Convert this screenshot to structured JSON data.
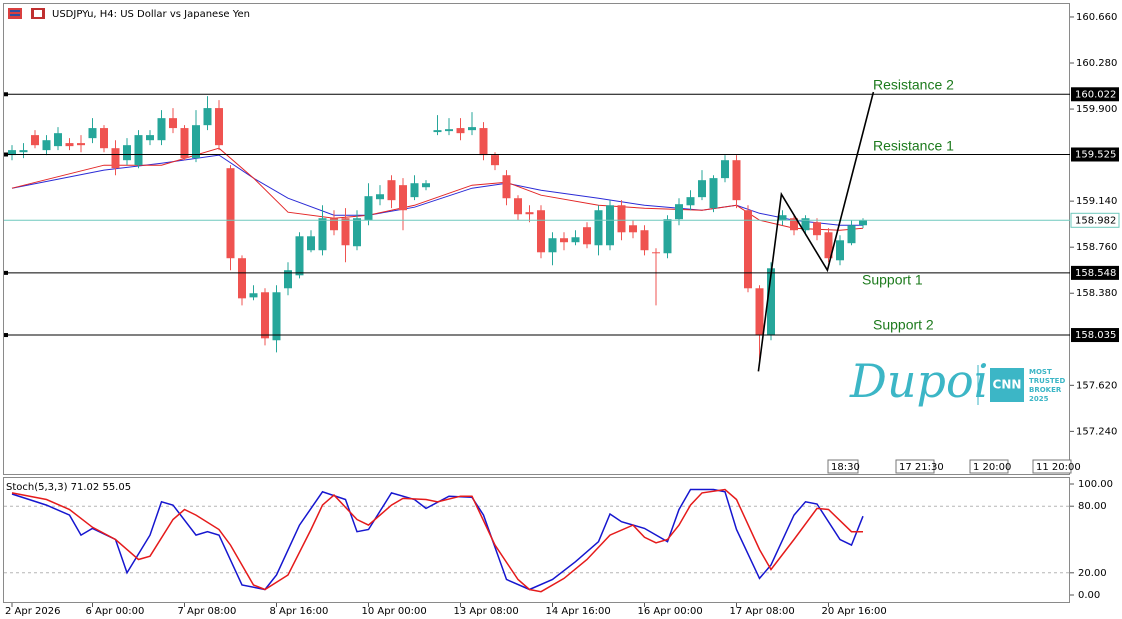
{
  "chart_data": [
    {
      "type": "candlestick",
      "title": "USDJPYu, H4:  US Dollar vs Japanese Yen",
      "ylim": [
        156.88,
        160.8
      ],
      "yticks": [
        {
          "value": 160.66,
          "label": "160.660"
        },
        {
          "value": 160.28,
          "label": "160.280"
        },
        {
          "value": 159.9,
          "label": "159.900"
        },
        {
          "value": 159.14,
          "label": "159.140"
        },
        {
          "value": 158.76,
          "label": "158.760"
        },
        {
          "value": 158.38,
          "label": "158.380"
        },
        {
          "value": 157.62,
          "label": "157.620"
        },
        {
          "value": 157.24,
          "label": "157.240"
        }
      ],
      "x": [
        0,
        1,
        2,
        3,
        4,
        5,
        6,
        7,
        8,
        9,
        10,
        11,
        12,
        13,
        14,
        15,
        16,
        17,
        18,
        19,
        20,
        21,
        22,
        23,
        24,
        25,
        26,
        27,
        28,
        29,
        30,
        31,
        32,
        33,
        34,
        35,
        36,
        37,
        38,
        39,
        40,
        41,
        42,
        43,
        44,
        45,
        46,
        47,
        48,
        49,
        50,
        51,
        52,
        53,
        54,
        55,
        56,
        57,
        58,
        59,
        60,
        61,
        62,
        63,
        64,
        65,
        66,
        67,
        68,
        69,
        70,
        71,
        72,
        73,
        74
      ],
      "open": [
        159.52,
        159.544,
        159.685,
        159.561,
        159.594,
        159.619,
        159.619,
        159.66,
        159.743,
        159.577,
        159.478,
        159.437,
        159.643,
        159.643,
        159.825,
        159.743,
        159.495,
        159.767,
        159.908,
        159.412,
        158.669,
        158.346,
        158.388,
        157.992,
        158.421,
        158.528,
        158.735,
        158.735,
        158.999,
        158.999,
        158.768,
        158.983,
        159.156,
        159.313,
        159.272,
        159.173,
        159.255,
        159.71,
        159.718,
        159.743,
        159.726,
        159.743,
        159.52,
        159.354,
        159.164,
        159.049,
        159.065,
        158.718,
        158.834,
        158.801,
        158.925,
        158.776,
        158.776,
        159.106,
        158.941,
        158.9,
        158.718,
        158.71,
        158.991,
        159.106,
        159.173,
        159.082,
        159.33,
        159.478,
        159.065,
        158.421,
        158.033,
        158.983,
        158.999,
        158.9,
        158.966,
        158.883,
        158.652,
        158.793,
        158.941
      ],
      "high": [
        159.602,
        159.619,
        159.726,
        159.685,
        159.751,
        159.66,
        159.685,
        159.825,
        159.767,
        159.643,
        159.66,
        159.726,
        159.726,
        159.891,
        159.908,
        159.767,
        159.891,
        160.007,
        159.974,
        159.437,
        158.693,
        158.446,
        158.421,
        158.446,
        158.636,
        158.883,
        158.9,
        159.106,
        159.065,
        159.082,
        159.065,
        159.288,
        159.272,
        159.354,
        159.33,
        159.354,
        159.313,
        159.85,
        159.825,
        159.825,
        159.875,
        159.792,
        159.544,
        159.396,
        159.189,
        159.106,
        159.106,
        158.883,
        158.883,
        158.9,
        158.966,
        159.106,
        159.148,
        159.148,
        158.983,
        158.941,
        158.751,
        159.024,
        159.164,
        159.23,
        159.396,
        159.354,
        159.52,
        159.52,
        159.106,
        158.446,
        158.636,
        159.065,
        159.024,
        159.024,
        158.999,
        158.917,
        158.859,
        158.983,
        158.999
      ],
      "low": [
        159.478,
        159.495,
        159.577,
        159.52,
        159.561,
        159.561,
        159.544,
        159.619,
        159.544,
        159.354,
        159.437,
        159.412,
        159.602,
        159.602,
        159.701,
        159.478,
        159.462,
        159.726,
        159.561,
        158.57,
        158.28,
        158.322,
        157.95,
        157.892,
        158.363,
        158.503,
        158.718,
        158.693,
        158.859,
        158.636,
        158.735,
        158.941,
        159.106,
        159.082,
        158.9,
        159.148,
        159.23,
        159.685,
        159.685,
        159.643,
        159.685,
        159.478,
        159.396,
        159.106,
        158.983,
        158.966,
        158.669,
        158.611,
        158.735,
        158.776,
        158.751,
        158.693,
        158.735,
        158.817,
        158.834,
        158.693,
        158.28,
        158.669,
        158.941,
        159.065,
        159.148,
        159.049,
        159.296,
        159.082,
        158.388,
        157.785,
        157.992,
        158.941,
        158.859,
        158.859,
        158.817,
        158.636,
        158.611,
        158.776,
        158.917
      ],
      "close": [
        159.561,
        159.561,
        159.602,
        159.643,
        159.701,
        159.594,
        159.602,
        159.743,
        159.577,
        159.412,
        159.602,
        159.685,
        159.685,
        159.825,
        159.743,
        159.495,
        159.767,
        159.908,
        159.602,
        158.669,
        158.338,
        158.38,
        158.008,
        158.388,
        158.57,
        158.85,
        158.85,
        158.999,
        158.9,
        158.776,
        158.999,
        159.181,
        159.197,
        159.148,
        159.065,
        159.288,
        159.288,
        159.726,
        159.734,
        159.701,
        159.751,
        159.52,
        159.437,
        159.164,
        159.032,
        159.032,
        158.718,
        158.834,
        158.801,
        158.842,
        158.784,
        159.065,
        159.106,
        158.883,
        158.883,
        158.735,
        158.71,
        158.991,
        159.115,
        159.173,
        159.313,
        159.33,
        159.478,
        159.148,
        158.421,
        158.033,
        158.586,
        159.024,
        158.9,
        158.999,
        158.859,
        158.669,
        158.817,
        158.941,
        158.983
      ],
      "bull_color": "#26a69a",
      "bear_color": "#ef5350",
      "series": [
        {
          "color": "#2b2bd6",
          "x": [
            0,
            8,
            13,
            18,
            21,
            24,
            28,
            31,
            35,
            40,
            43,
            46,
            51,
            55,
            60,
            63,
            65,
            68,
            72,
            74
          ],
          "values": [
            159.247,
            159.396,
            159.453,
            159.52,
            159.33,
            159.164,
            159.024,
            159.024,
            159.09,
            159.247,
            159.288,
            159.23,
            159.164,
            159.106,
            159.065,
            159.106,
            159.04,
            158.983,
            158.941,
            158.941
          ]
        },
        {
          "color": "#e32626",
          "x": [
            0,
            8,
            13,
            18,
            21,
            24,
            28,
            31,
            35,
            40,
            43,
            46,
            51,
            55,
            60,
            63,
            65,
            68,
            72,
            74
          ],
          "values": [
            159.247,
            159.437,
            159.437,
            159.577,
            159.33,
            159.049,
            158.999,
            159.024,
            159.106,
            159.272,
            159.296,
            159.189,
            159.106,
            159.082,
            159.065,
            159.106,
            158.983,
            158.917,
            158.9,
            158.917
          ]
        }
      ],
      "levels": [
        160.022,
        159.525,
        158.548,
        158.035
      ],
      "level_color": "#000000",
      "current_price": 158.982,
      "current_color": "#6ec9bd",
      "annotations": [
        "Resistance 2",
        "Resistance 1",
        "Support 1",
        "Support 2"
      ],
      "annotation_color": "#1c7a1c",
      "trendline": {
        "color": "#000000",
        "x": [
          64.9,
          66.9,
          70.9,
          74.9
        ],
        "values": [
          157.735,
          159.197,
          158.57,
          160.04
        ]
      },
      "time_markers": [
        "18:30",
        "17 21:30",
        "1 20:00",
        "11 20:00"
      ]
    },
    {
      "type": "line",
      "title": "Stoch(5,3,3) 71.02 55.05",
      "ylim": [
        -7.2,
        105.4
      ],
      "yticks": [
        {
          "value": 100,
          "label": "100.00"
        },
        {
          "value": 80,
          "label": "80.00"
        },
        {
          "value": 20,
          "label": "20.00"
        },
        {
          "value": 0,
          "label": "0.00"
        }
      ],
      "xticks": [
        {
          "value": 0,
          "label": "2 Apr 2026"
        },
        {
          "value": 7,
          "label": "6 Apr 00:00"
        },
        {
          "value": 15,
          "label": "7 Apr 08:00"
        },
        {
          "value": 23,
          "label": "8 Apr 16:00"
        },
        {
          "value": 31,
          "label": "10 Apr 00:00"
        },
        {
          "value": 39,
          "label": "13 Apr 08:00"
        },
        {
          "value": 47,
          "label": "14 Apr 16:00"
        },
        {
          "value": 55,
          "label": "16 Apr 00:00"
        },
        {
          "value": 63,
          "label": "17 Apr 08:00"
        },
        {
          "value": 71,
          "label": "20 Apr 16:00"
        }
      ],
      "series": [
        {
          "color": "#1616cf",
          "x": [
            0,
            3,
            5,
            6,
            7,
            9,
            10,
            12,
            13,
            14,
            16,
            17,
            18,
            20,
            22,
            23,
            25,
            27,
            29,
            30,
            31,
            33,
            35,
            36,
            38,
            40,
            41,
            43,
            45,
            47,
            49,
            51,
            52,
            53,
            55,
            57,
            58,
            59,
            61,
            62,
            63,
            65,
            66,
            68,
            69,
            70,
            72,
            73,
            74
          ],
          "values": [
            91,
            81,
            72,
            54,
            60,
            50,
            20,
            54,
            84,
            81,
            54,
            57,
            54,
            9,
            5,
            18,
            63,
            93,
            86,
            57,
            59,
            92,
            86,
            78,
            89,
            88,
            72,
            14,
            5,
            14,
            30,
            48,
            73,
            66,
            60,
            48,
            77,
            95,
            95,
            93,
            59,
            15,
            27,
            72,
            84,
            82,
            50,
            45,
            71
          ]
        },
        {
          "color": "#e51b1b",
          "x": [
            0,
            3,
            5,
            7,
            9,
            11,
            12,
            14,
            15,
            16,
            18,
            19,
            21,
            22,
            24,
            26,
            27,
            28,
            30,
            31,
            33,
            34,
            36,
            37,
            39,
            40,
            42,
            44,
            45,
            46,
            48,
            50,
            52,
            54,
            55,
            56,
            57,
            58,
            59,
            60,
            62,
            63,
            65,
            66,
            68,
            70,
            71,
            73,
            74
          ],
          "values": [
            92,
            86,
            77,
            61,
            50,
            32,
            35,
            68,
            77,
            72,
            59,
            45,
            9,
            5,
            18,
            59,
            81,
            90,
            68,
            63,
            81,
            87,
            86,
            84,
            89,
            89,
            45,
            14,
            5,
            3,
            15,
            32,
            54,
            63,
            52,
            47,
            50,
            63,
            81,
            92,
            95,
            86,
            41,
            23,
            50,
            78,
            77,
            57,
            57
          ]
        }
      ],
      "grid_color": "#b5b5b5"
    }
  ],
  "watermark": {
    "brand": "Dupoin",
    "badge": "CNN",
    "tagline": [
      "MOST",
      "TRUSTED",
      "BROKER",
      "2025"
    ]
  }
}
